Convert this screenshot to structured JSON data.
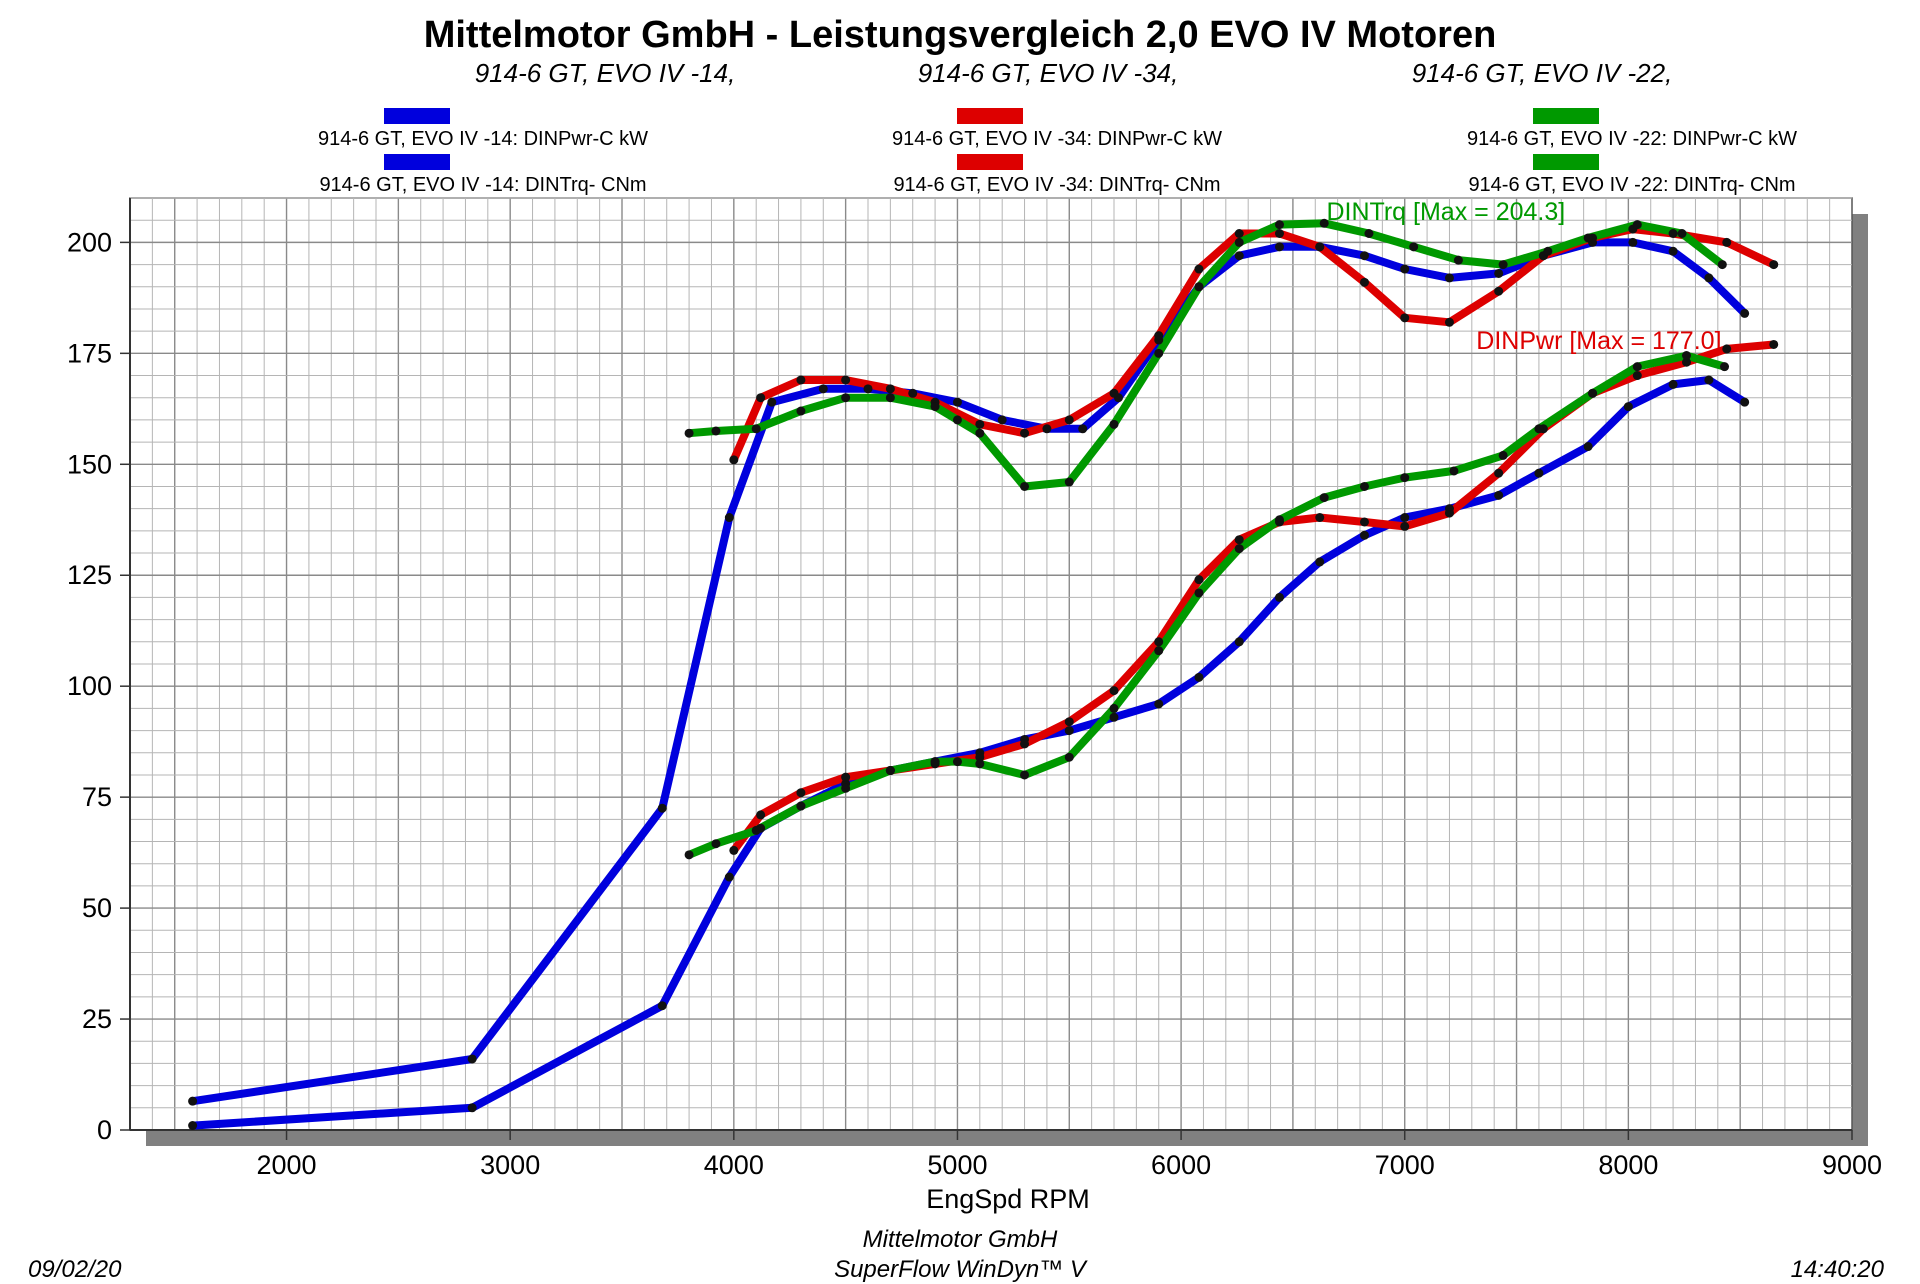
{
  "title": "Mittelmotor GmbH - Leistungsvergleich 2,0 EVO IV Motoren",
  "subtitles": [
    "914-6 GT, EVO IV -14,",
    "914-6 GT, EVO IV -34,",
    "914-6 GT, EVO IV -22,"
  ],
  "legend": {
    "entries": [
      {
        "label": "914-6 GT, EVO IV -14: DINPwr-C kW",
        "color": "#0000dd"
      },
      {
        "label": "914-6 GT, EVO IV -14: DINTrq- CNm",
        "color": "#0000dd"
      },
      {
        "label": "914-6 GT, EVO IV -34: DINPwr-C kW",
        "color": "#dd0000"
      },
      {
        "label": "914-6 GT, EVO IV -34: DINTrq- CNm",
        "color": "#dd0000"
      },
      {
        "label": "914-6 GT, EVO IV -22: DINPwr-C kW",
        "color": "#009900"
      },
      {
        "label": "914-6 GT, EVO IV -22: DINTrq- CNm",
        "color": "#009900"
      }
    ]
  },
  "footer": {
    "date": "09/02/20",
    "company": "Mittelmotor GmbH",
    "software": "SuperFlow WinDyn™ V",
    "time": "14:40:20"
  },
  "chart_data": {
    "type": "line",
    "xlabel": "EngSpd  RPM",
    "ylabel": "",
    "xlim": [
      1300,
      9000
    ],
    "ylim": [
      0,
      210
    ],
    "xticks": [
      2000,
      3000,
      4000,
      5000,
      6000,
      7000,
      8000,
      9000
    ],
    "yticks": [
      0,
      25,
      50,
      75,
      100,
      125,
      150,
      175,
      200
    ],
    "grid": true,
    "legend_position": "top",
    "annotations": [
      {
        "text": "DINTrq [Max = 204.3]",
        "x": 6650,
        "y": 205,
        "color": "#009900"
      },
      {
        "text": "DINPwr [Max = 177.0]",
        "x": 7320,
        "y": 176,
        "color": "#dd0000"
      }
    ],
    "series": [
      {
        "name": "914-6 GT, EVO IV -14: DINPwr-C kW",
        "color": "#0000dd",
        "x": [
          1580,
          2830,
          3680,
          3980,
          4120,
          4300,
          4500,
          4700,
          4900,
          5100,
          5300,
          5500,
          5700,
          5900,
          6080,
          6260,
          6440,
          6620,
          6820,
          7000,
          7200,
          7420,
          7600,
          7820,
          8000,
          8200,
          8360,
          8520
        ],
        "y": [
          1,
          5,
          28,
          57,
          68,
          73,
          78,
          81,
          83,
          85,
          88,
          90,
          93,
          96,
          102,
          110,
          120,
          128,
          134,
          138,
          140,
          143,
          148,
          154,
          163,
          168,
          169,
          164
        ]
      },
      {
        "name": "914-6 GT, EVO IV -14: DINTrq- CNm",
        "color": "#0000dd",
        "x": [
          1580,
          2830,
          3680,
          3980,
          4170,
          4400,
          4600,
          4800,
          5000,
          5200,
          5400,
          5560,
          5720,
          5900,
          6080,
          6260,
          6440,
          6620,
          6820,
          7000,
          7200,
          7420,
          7620,
          7840,
          8020,
          8200,
          8360,
          8520
        ],
        "y": [
          6.5,
          16,
          72.5,
          138,
          164,
          167,
          167,
          166,
          164,
          160,
          158,
          158,
          165,
          178,
          190,
          197,
          199,
          199,
          197,
          194,
          192,
          193,
          197,
          200,
          200,
          198,
          192,
          184
        ]
      },
      {
        "name": "914-6 GT, EVO IV -34: DINPwr-C kW",
        "color": "#dd0000",
        "x": [
          4000,
          4120,
          4300,
          4500,
          4700,
          4900,
          5100,
          5300,
          5500,
          5700,
          5900,
          6080,
          6260,
          6440,
          6620,
          6820,
          7000,
          7200,
          7420,
          7620,
          7840,
          8040,
          8260,
          8440,
          8650
        ],
        "y": [
          63,
          71,
          76,
          79.5,
          81,
          82.5,
          84,
          87,
          92,
          99,
          110,
          124,
          133,
          137,
          138,
          137,
          136,
          139,
          148,
          158,
          166,
          170,
          173,
          176,
          177
        ]
      },
      {
        "name": "914-6 GT, EVO IV -34: DINTrq- CNm",
        "color": "#dd0000",
        "x": [
          4000,
          4120,
          4300,
          4500,
          4700,
          4900,
          5100,
          5300,
          5500,
          5700,
          5900,
          6080,
          6260,
          6440,
          6620,
          6820,
          7000,
          7200,
          7420,
          7620,
          7840,
          8020,
          8200,
          8440,
          8650
        ],
        "y": [
          151,
          165,
          169,
          169,
          167,
          164,
          159,
          157,
          160,
          166,
          179,
          194,
          202,
          202,
          199,
          191,
          183,
          182,
          189,
          197,
          201,
          203,
          202,
          200,
          195
        ]
      },
      {
        "name": "914-6 GT, EVO IV -22: DINPwr-C kW",
        "color": "#009900",
        "x": [
          3800,
          3920,
          4100,
          4300,
          4500,
          4700,
          4900,
          5000,
          5100,
          5300,
          5500,
          5700,
          5900,
          6080,
          6260,
          6440,
          6640,
          6820,
          7000,
          7220,
          7440,
          7600,
          7840,
          8040,
          8260,
          8430
        ],
        "y": [
          62,
          64.5,
          67.5,
          73,
          77,
          81,
          83,
          83,
          82.5,
          80,
          84,
          95,
          108,
          121,
          131,
          137.5,
          142.5,
          145,
          147,
          148.5,
          152,
          158,
          166,
          172,
          174.5,
          172
        ]
      },
      {
        "name": "914-6 GT, EVO IV -22: DINTrq- CNm",
        "color": "#009900",
        "x": [
          3800,
          3920,
          4100,
          4300,
          4500,
          4700,
          4900,
          5000,
          5100,
          5300,
          5500,
          5700,
          5900,
          6080,
          6260,
          6440,
          6640,
          6840,
          7040,
          7240,
          7440,
          7640,
          7820,
          8040,
          8240,
          8420
        ],
        "y": [
          157,
          157.5,
          158,
          162,
          165,
          165,
          163,
          160,
          157,
          145,
          146,
          159,
          175,
          190,
          200,
          204,
          204.3,
          202,
          199,
          196,
          195,
          198,
          201,
          204,
          202,
          195
        ]
      }
    ]
  }
}
